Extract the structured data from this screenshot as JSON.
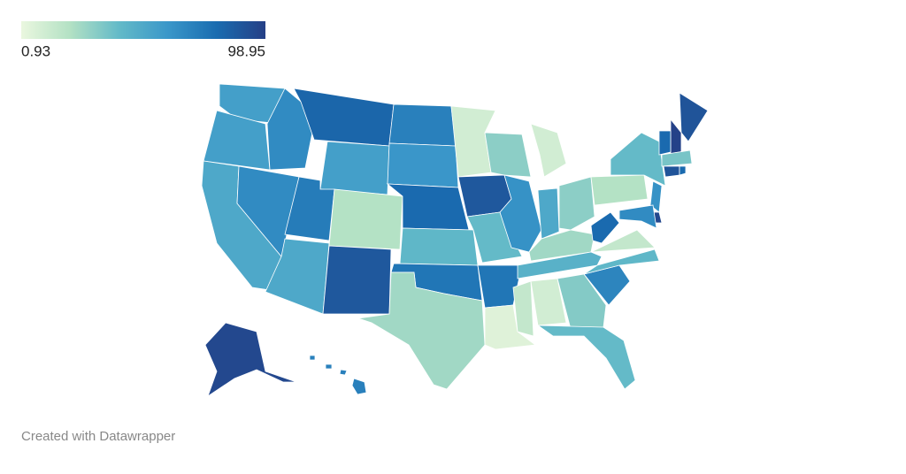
{
  "chart_data": {
    "type": "choropleth",
    "range": [
      0.93,
      98.95
    ],
    "colors": [
      "#eaf7df",
      "#b3e1c4",
      "#63bac8",
      "#3a97c9",
      "#1a6cb0",
      "#253f86"
    ],
    "values": [
      55,
      55,
      50,
      65,
      65,
      82,
      55,
      72,
      50,
      20,
      88,
      70,
      60,
      80,
      42,
      75,
      25,
      10,
      88,
      40,
      75,
      5,
      30,
      62,
      10,
      50,
      30,
      25,
      45,
      15,
      10,
      32,
      40,
      68,
      42,
      15,
      80,
      20,
      40,
      90,
      98,
      80,
      35,
      90,
      80,
      62,
      95,
      65,
      95,
      70
    ],
    "credit": "Created with Datawrapper"
  }
}
